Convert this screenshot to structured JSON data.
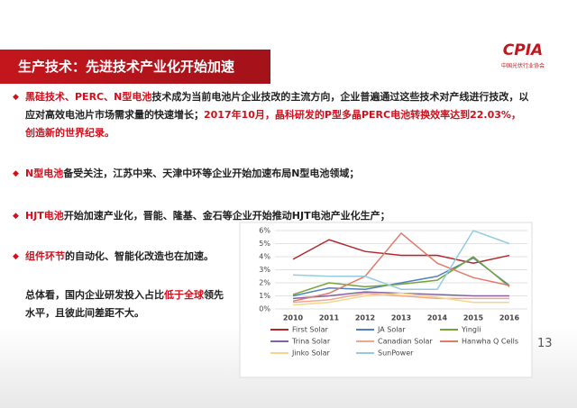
{
  "header": {
    "title": "生产技术：先进技术产业化开始加速",
    "logo": "CPIA",
    "logo_sub": "中国光伏行业协会"
  },
  "bullets": [
    {
      "segments": [
        {
          "text": "黑硅技术、PERC、N型电池",
          "color": "#d0101b"
        },
        {
          "text": "技术成为当前电池片企业技改的主流方向，企业普遍通过这些技术对产线进行技改，以应对高效电池片市场需求量的快速增长；",
          "color": "#222222"
        },
        {
          "text": "2017年10月，晶科研发的P型多晶PERC电池转换效率达到22.03%，创造新的世界纪录。",
          "color": "#d0101b"
        }
      ]
    },
    {
      "segments": [
        {
          "text": "N型电池",
          "color": "#d0101b"
        },
        {
          "text": "备受关注，江苏中来、天津中环等企业开始加速布局N型电池领域；",
          "color": "#222222"
        }
      ]
    },
    {
      "segments": [
        {
          "text": "HJT电池",
          "color": "#d0101b"
        },
        {
          "text": "开始加速产业化，晋能、隆基、金石等企业开始推动HJT电池产业化生产；",
          "color": "#222222"
        }
      ]
    },
    {
      "segments": [
        {
          "text": "组件环节",
          "color": "#d0101b"
        },
        {
          "text": "的自动化、智能化改造也在加速。",
          "color": "#222222"
        }
      ]
    }
  ],
  "summary": {
    "segments": [
      {
        "text": "总体看，国内企业研发投入占比",
        "color": "#222222"
      },
      {
        "text": "低于全球",
        "color": "#d0101b"
      },
      {
        "text": "领先水平，且彼此间差距不大。",
        "color": "#222222"
      }
    ]
  },
  "page_number": "13",
  "chart_data": {
    "type": "line",
    "categories": [
      "2010",
      "2011",
      "2012",
      "2013",
      "2014",
      "2015",
      "2016"
    ],
    "ylim": [
      0,
      6
    ],
    "yticks": [
      {
        "value": 0,
        "label": "0%"
      },
      {
        "value": 1,
        "label": "1%"
      },
      {
        "value": 2,
        "label": "2%"
      },
      {
        "value": 3,
        "label": "3%"
      },
      {
        "value": 4,
        "label": "4%"
      },
      {
        "value": 5,
        "label": "5%"
      },
      {
        "value": 6,
        "label": "6%"
      }
    ],
    "grid": true,
    "series": [
      {
        "name": "First Solar",
        "color": "#b3262b",
        "values": [
          3.8,
          5.3,
          4.4,
          4.1,
          4.1,
          3.5,
          4.1
        ]
      },
      {
        "name": "JA Solar",
        "color": "#4f81bd",
        "values": [
          1.0,
          1.6,
          1.5,
          2.0,
          2.5,
          3.9,
          1.8
        ]
      },
      {
        "name": "Yingli",
        "color": "#76a33a",
        "values": [
          1.1,
          2.0,
          1.7,
          1.9,
          2.2,
          4.0,
          1.7
        ]
      },
      {
        "name": "Trina Solar",
        "color": "#8064a2",
        "values": [
          0.8,
          1.0,
          1.3,
          1.2,
          1.1,
          1.0,
          1.0
        ]
      },
      {
        "name": "Canadian Solar",
        "color": "#f2a68c",
        "values": [
          0.5,
          0.7,
          1.2,
          1.0,
          0.8,
          0.8,
          0.8
        ]
      },
      {
        "name": "Hanwha Q Cells",
        "color": "#e07b6a",
        "values": [
          0.6,
          1.2,
          2.5,
          5.8,
          3.5,
          2.4,
          1.8
        ]
      },
      {
        "name": "Jinko Solar",
        "color": "#f6d58a",
        "values": [
          0.3,
          0.5,
          1.0,
          1.2,
          0.9,
          0.5,
          0.5
        ]
      },
      {
        "name": "SunPower",
        "color": "#93cddd",
        "values": [
          2.6,
          2.5,
          2.5,
          1.5,
          1.5,
          6.0,
          5.0
        ]
      }
    ]
  }
}
